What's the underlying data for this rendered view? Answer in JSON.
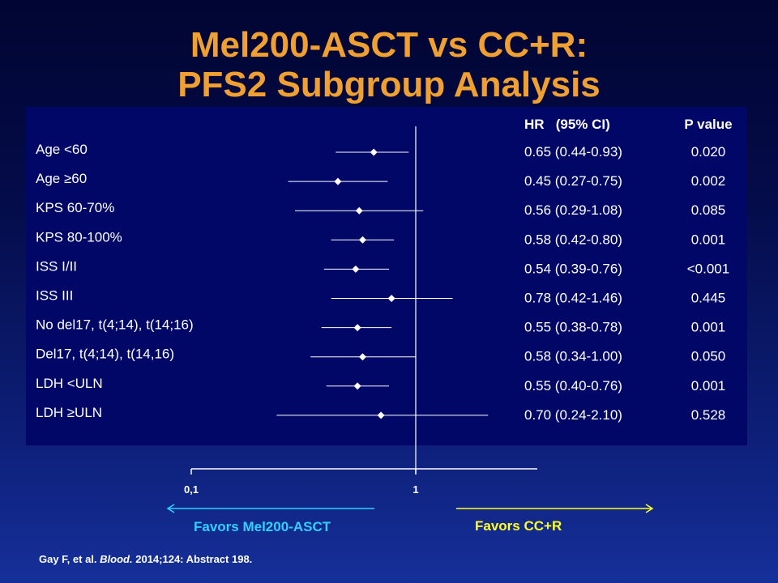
{
  "slide": {
    "title_line1": "Mel200-ASCT vs CC+R:",
    "title_line2": "PFS2 Subgroup Analysis",
    "citation_authors": "Gay F, et al.",
    "citation_journal": "Blood.",
    "citation_rest": "2014;124: Abstract 198.",
    "colors": {
      "title": "#f0a030",
      "favors_left": "#30d0ff",
      "favors_right": "#ffff20"
    }
  },
  "chart_data": {
    "type": "forest",
    "xscale": "log",
    "xlim": [
      0.1,
      2.5
    ],
    "x_ticks": [
      {
        "value": 0.1,
        "label": "0,1"
      },
      {
        "value": 1,
        "label": "1"
      }
    ],
    "reference_line": 1,
    "column_headers": {
      "hr": "HR   (95% CI)",
      "p": "P value"
    },
    "favors_left": "Favors Mel200-ASCT",
    "favors_right": "Favors CC+R",
    "rows": [
      {
        "label": "Age <60",
        "hr": 0.65,
        "lo": 0.44,
        "hi": 0.93,
        "hr_text": "0.65 (0.44-0.93)",
        "p": "0.020"
      },
      {
        "label": "Age ≥60",
        "hr": 0.45,
        "lo": 0.27,
        "hi": 0.75,
        "hr_text": "0.45 (0.27-0.75)",
        "p": "0.002"
      },
      {
        "label": "KPS 60-70%",
        "hr": 0.56,
        "lo": 0.29,
        "hi": 1.08,
        "hr_text": "0.56 (0.29-1.08)",
        "p": "0.085"
      },
      {
        "label": "KPS 80-100%",
        "hr": 0.58,
        "lo": 0.42,
        "hi": 0.8,
        "hr_text": "0.58 (0.42-0.80)",
        "p": "0.001"
      },
      {
        "label": "ISS I/II",
        "hr": 0.54,
        "lo": 0.39,
        "hi": 0.76,
        "hr_text": "0.54 (0.39-0.76)",
        "p": "<0.001"
      },
      {
        "label": "ISS III",
        "hr": 0.78,
        "lo": 0.42,
        "hi": 1.46,
        "hr_text": "0.78 (0.42-1.46)",
        "p": "0.445"
      },
      {
        "label": "No del17, t(4;14), t(14;16)",
        "hr": 0.55,
        "lo": 0.38,
        "hi": 0.78,
        "hr_text": "0.55 (0.38-0.78)",
        "p": "0.001"
      },
      {
        "label": "Del17, t(4;14), t(14,16)",
        "hr": 0.58,
        "lo": 0.34,
        "hi": 1.0,
        "hr_text": "0.58 (0.34-1.00)",
        "p": "0.050"
      },
      {
        "label": "LDH <ULN",
        "hr": 0.55,
        "lo": 0.4,
        "hi": 0.76,
        "hr_text": "0.55 (0.40-0.76)",
        "p": "0.001"
      },
      {
        "label": "LDH ≥ULN",
        "hr": 0.7,
        "lo": 0.24,
        "hi": 2.1,
        "hr_text": "0.70 (0.24-2.10)",
        "p": "0.528"
      }
    ]
  }
}
